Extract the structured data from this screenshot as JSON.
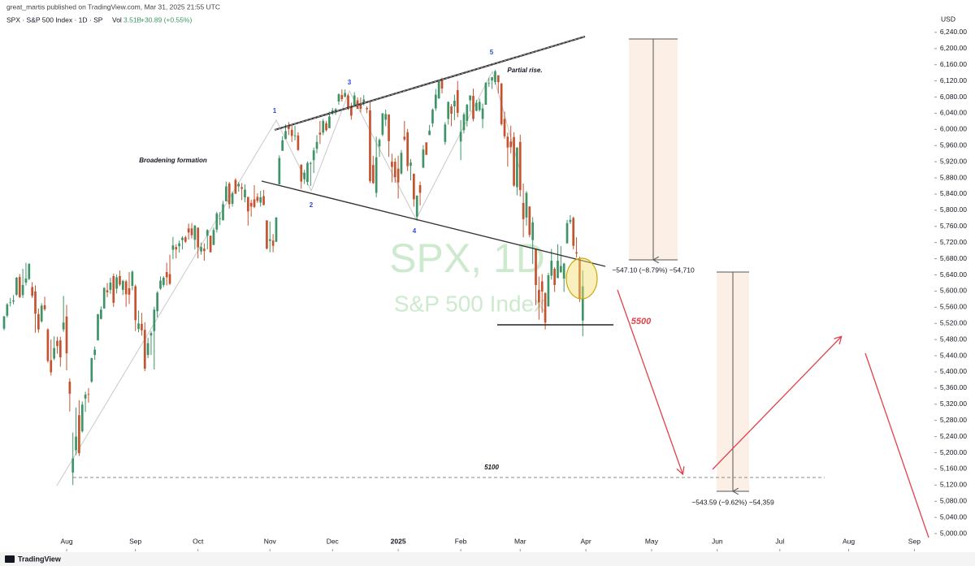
{
  "header": {
    "publisher": "great_martis published on TradingView.com, Mar 31, 2025 21:55 UTC"
  },
  "footer": {
    "brand": "TradingView"
  },
  "chart_data": {
    "type": "candlestick",
    "legend": {
      "symbol": "SPX · S&P 500 Index · 1D · SP",
      "volume_label": "Vol",
      "volume": "3.51B",
      "change": "+30.89 (+0.55%)"
    },
    "currency": "USD",
    "color_up": "#3e9466",
    "color_down": "#c4532f",
    "grid": false,
    "xlim": [
      -1.3,
      297.4
    ],
    "xticks": [
      {
        "value": 20,
        "label": "Aug"
      },
      {
        "value": 42,
        "label": "Sep"
      },
      {
        "value": 62,
        "label": "Oct"
      },
      {
        "value": 85,
        "label": "Nov"
      },
      {
        "value": 105,
        "label": "Dec"
      },
      {
        "value": 126,
        "label": "2025"
      },
      {
        "value": 146,
        "label": "Feb"
      },
      {
        "value": 165,
        "label": "Mar"
      },
      {
        "value": 186,
        "label": "Apr"
      },
      {
        "value": 207,
        "label": "May"
      },
      {
        "value": 228,
        "label": "Jun"
      },
      {
        "value": 248,
        "label": "Jul"
      },
      {
        "value": 270,
        "label": "Aug"
      },
      {
        "value": 291,
        "label": "Sep"
      }
    ],
    "ylim": [
      4978,
      6284
    ],
    "yticks": [
      {
        "value": 5000,
        "label": "5,000.00"
      },
      {
        "value": 5040,
        "label": "5,040.00"
      },
      {
        "value": 5080,
        "label": "5,080.00"
      },
      {
        "value": 5120,
        "label": "5,120.00"
      },
      {
        "value": 5160,
        "label": "5,160.00"
      },
      {
        "value": 5200,
        "label": "5,200.00"
      },
      {
        "value": 5240,
        "label": "5,240.00"
      },
      {
        "value": 5280,
        "label": "5,280.00"
      },
      {
        "value": 5320,
        "label": "5,320.00"
      },
      {
        "value": 5360,
        "label": "5,360.00"
      },
      {
        "value": 5400,
        "label": "5,400.00"
      },
      {
        "value": 5440,
        "label": "5,440.00"
      },
      {
        "value": 5480,
        "label": "5,480.00"
      },
      {
        "value": 5520,
        "label": "5,520.00"
      },
      {
        "value": 5560,
        "label": "5,560.00"
      },
      {
        "value": 5600,
        "label": "5,600.00"
      },
      {
        "value": 5640,
        "label": "5,640.00"
      },
      {
        "value": 5680,
        "label": "5,680.00"
      },
      {
        "value": 5720,
        "label": "5,720.00"
      },
      {
        "value": 5760,
        "label": "5,760.00"
      },
      {
        "value": 5800,
        "label": "5,800.00"
      },
      {
        "value": 5840,
        "label": "5,840.00"
      },
      {
        "value": 5880,
        "label": "5,880.00"
      },
      {
        "value": 5920,
        "label": "5,920.00"
      },
      {
        "value": 5960,
        "label": "5,960.00"
      },
      {
        "value": 6000,
        "label": "6,000.00"
      },
      {
        "value": 6040,
        "label": "6,040.00"
      },
      {
        "value": 6080,
        "label": "6,080.00"
      },
      {
        "value": 6120,
        "label": "6,120.00"
      },
      {
        "value": 6160,
        "label": "6,160.00"
      },
      {
        "value": 6200,
        "label": "6,200.00"
      },
      {
        "value": 6240,
        "label": "6,240.00"
      }
    ],
    "open": [
      5507,
      5539,
      5572,
      5574,
      5591,
      5635,
      5590,
      5621,
      5630,
      5610,
      5599,
      5543,
      5525,
      5565,
      5505,
      5429,
      5433,
      5477,
      5478,
      5505,
      5537,
      5376,
      5151,
      5206,
      5293,
      5253,
      5334,
      5345,
      5376,
      5442,
      5478,
      5531,
      5557,
      5602,
      5603,
      5637,
      5606,
      5637,
      5603,
      5624,
      5607,
      5613,
      5612,
      5506,
      5519,
      5504,
      5442,
      5490,
      5501,
      5550,
      5606,
      5615,
      5647,
      5642,
      5702,
      5709,
      5711,
      5726,
      5733,
      5755,
      5755,
      5727,
      5757,
      5698,
      5705,
      5737,
      5737,
      5714,
      5752,
      5779,
      5775,
      5822,
      5866,
      5816,
      5875,
      5859,
      5857,
      5832,
      5833,
      5818,
      5827,
      5833,
      5819,
      5835,
      5775,
      5724,
      5725,
      5722,
      5864,
      5947,
      5976,
      6008,
      5999,
      5985,
      5985,
      5913,
      5877,
      5870,
      5915,
      5924,
      5952,
      5992,
      5992,
      6015,
      6003,
      6040,
      6042,
      6069,
      6085,
      6081,
      6084,
      6058,
      6058,
      6072,
      6064,
      6064,
      6053,
      6047,
      5912,
      5843,
      5958,
      5987,
      6024,
      6037,
      5920,
      5920,
      5903,
      5891,
      5982,
      5993,
      5910,
      5890,
      5784,
      5862,
      5905,
      5968,
      5986,
      6015,
      6052,
      6077,
      6121,
      5969,
      6026,
      6057,
      6057,
      6097,
      5970,
      5998,
      6021,
      6072,
      6083,
      6046,
      6048,
      6026,
      6061,
      6115,
      6121,
      6117,
      6134,
      6114,
      6026,
      5982,
      5970,
      5981,
      5857,
      5969,
      5818,
      5782,
      5809,
      5726,
      5705,
      5603,
      5624,
      5595,
      5562,
      5638,
      5655,
      5632,
      5646,
      5631,
      5718,
      5771,
      5781,
      5696,
      5679,
      5527
    ],
    "high": [
      5539,
      5570,
      5583,
      5590,
      5635,
      5642,
      5655,
      5670,
      5669,
      5622,
      5614,
      5557,
      5570,
      5586,
      5508,
      5480,
      5488,
      5487,
      5487,
      5588,
      5566,
      5384,
      5250,
      5312,
      5330,
      5327,
      5351,
      5360,
      5435,
      5463,
      5543,
      5562,
      5609,
      5620,
      5633,
      5643,
      5641,
      5651,
      5628,
      5628,
      5647,
      5651,
      5616,
      5552,
      5546,
      5523,
      5485,
      5501,
      5561,
      5600,
      5636,
      5637,
      5670,
      5690,
      5734,
      5716,
      5725,
      5736,
      5737,
      5767,
      5768,
      5763,
      5757,
      5720,
      5718,
      5753,
      5737,
      5757,
      5796,
      5795,
      5823,
      5871,
      5870,
      5846,
      5879,
      5870,
      5867,
      5864,
      5833,
      5826,
      5862,
      5842,
      5848,
      5850,
      5775,
      5772,
      5741,
      5783,
      5936,
      5983,
      6012,
      6018,
      6009,
      6009,
      5993,
      5913,
      5900,
      5921,
      5920,
      5955,
      5986,
      6021,
      6026,
      6021,
      6044,
      6053,
      6053,
      6089,
      6099,
      6099,
      6088,
      6066,
      6092,
      6079,
      6079,
      6085,
      6057,
      6070,
      5935,
      5982,
      5978,
      6040,
      6049,
      6037,
      5940,
      5929,
      5935,
      5949,
      6021,
      6001,
      5927,
      5891,
      5837,
      5871,
      5961,
      5965,
      6011,
      6052,
      6100,
      6119,
      6128,
      6018,
      6069,
      6063,
      6086,
      6120,
      6023,
      6042,
      6063,
      6084,
      6101,
      6073,
      6076,
      6064,
      6117,
      6128,
      6130,
      6147,
      6134,
      6114,
      6044,
      5992,
      6009,
      5993,
      5956,
      5987,
      5866,
      5847,
      5810,
      5783,
      5705,
      5636,
      5642,
      5597,
      5645,
      5704,
      5659,
      5716,
      5711,
      5670,
      5776,
      5788,
      5784,
      5733,
      5685,
      5651
    ],
    "low": [
      5503,
      5535,
      5562,
      5567,
      5588,
      5583,
      5583,
      5614,
      5627,
      5583,
      5497,
      5497,
      5522,
      5551,
      5423,
      5391,
      5429,
      5445,
      5413,
      5499,
      5404,
      5302,
      5120,
      5194,
      5192,
      5250,
      5301,
      5324,
      5373,
      5430,
      5478,
      5530,
      5556,
      5585,
      5593,
      5561,
      5594,
      5612,
      5590,
      5561,
      5568,
      5602,
      5501,
      5498,
      5490,
      5402,
      5434,
      5442,
      5406,
      5535,
      5603,
      5610,
      5614,
      5615,
      5679,
      5681,
      5695,
      5703,
      5719,
      5727,
      5730,
      5703,
      5681,
      5690,
      5675,
      5703,
      5696,
      5714,
      5745,
      5763,
      5775,
      5822,
      5804,
      5809,
      5840,
      5846,
      5825,
      5820,
      5762,
      5784,
      5805,
      5818,
      5809,
      5812,
      5703,
      5696,
      5696,
      5721,
      5864,
      5947,
      5976,
      5986,
      5969,
      5973,
      5947,
      5853,
      5865,
      5862,
      5860,
      5892,
      5941,
      5964,
      5986,
      5995,
      6003,
      6036,
      6036,
      6061,
      6069,
      6079,
      6048,
      6024,
      6058,
      6051,
      6042,
      6059,
      6040,
      5867,
      5865,
      5832,
      5932,
      5983,
      6008,
      5932,
      5869,
      5868,
      5829,
      5888,
      5971,
      5897,
      5874,
      5809,
      5774,
      5812,
      5905,
      5938,
      5986,
      6006,
      6046,
      6075,
      6089,
      5962,
      6012,
      6008,
      6023,
      6030,
      5924,
      5990,
      6007,
      6044,
      6020,
      6045,
      6044,
      6003,
      6061,
      6105,
      6100,
      6111,
      6089,
      6009,
      5977,
      5908,
      5941,
      5858,
      5837,
      5834,
      5733,
      5762,
      5733,
      5667,
      5565,
      5529,
      5546,
      5505,
      5562,
      5628,
      5598,
      5632,
      5652,
      5598,
      5718,
      5766,
      5703,
      5683,
      5573,
      5488
    ],
    "close": [
      5537,
      5567,
      5572,
      5577,
      5633,
      5585,
      5615,
      5631,
      5667,
      5588,
      5544,
      5505,
      5564,
      5555,
      5427,
      5399,
      5459,
      5464,
      5436,
      5522,
      5446,
      5346,
      5186,
      5240,
      5199,
      5319,
      5344,
      5344,
      5434,
      5455,
      5543,
      5554,
      5608,
      5597,
      5621,
      5571,
      5634,
      5616,
      5625,
      5592,
      5591,
      5648,
      5528,
      5520,
      5503,
      5408,
      5471,
      5496,
      5554,
      5596,
      5626,
      5633,
      5634,
      5618,
      5713,
      5703,
      5718,
      5732,
      5722,
      5745,
      5738,
      5762,
      5708,
      5709,
      5699,
      5751,
      5696,
      5751,
      5792,
      5780,
      5815,
      5859,
      5815,
      5842,
      5841,
      5865,
      5853,
      5851,
      5797,
      5809,
      5808,
      5823,
      5832,
      5813,
      5705,
      5728,
      5712,
      5782,
      5929,
      5973,
      5996,
      6001,
      5984,
      5985,
      5949,
      5871,
      5893,
      5917,
      5917,
      5948,
      5969,
      5987,
      6021,
      5998,
      6032,
      6047,
      6050,
      6087,
      6075,
      6090,
      6053,
      6034,
      6084,
      6051,
      6051,
      6074,
      6050,
      5872,
      5867,
      5931,
      5974,
      6040,
      6038,
      5971,
      5907,
      5882,
      5869,
      5942,
      5975,
      5909,
      5918,
      5827,
      5836,
      5843,
      5950,
      5937,
      5997,
      6049,
      6086,
      6119,
      6101,
      6012,
      6068,
      6039,
      6071,
      6041,
      5994,
      6037,
      6061,
      6084,
      6026,
      6066,
      6068,
      6052,
      6115,
      6115,
      6129,
      6144,
      6117,
      6013,
      5983,
      5955,
      5956,
      5861,
      5955,
      5850,
      5778,
      5843,
      5739,
      5770,
      5615,
      5572,
      5599,
      5522,
      5639,
      5675,
      5615,
      5675,
      5662,
      5668,
      5768,
      5776,
      5712,
      5693,
      5581,
      5612
    ],
    "annotations": {
      "wave_labels": [
        "1",
        "2",
        "3",
        "4",
        "5"
      ],
      "pattern": "Broadening formation",
      "partial_rise": "Partial rise.",
      "target": "5500",
      "support": "5100",
      "measure_upper": "−547.10 (−8.79%) −54,710",
      "measure_lower": "−543.59 (−9.62%) −54,359",
      "watermark_symbol": "SPX, 1D",
      "watermark_name": "S&P 500 Index"
    }
  }
}
